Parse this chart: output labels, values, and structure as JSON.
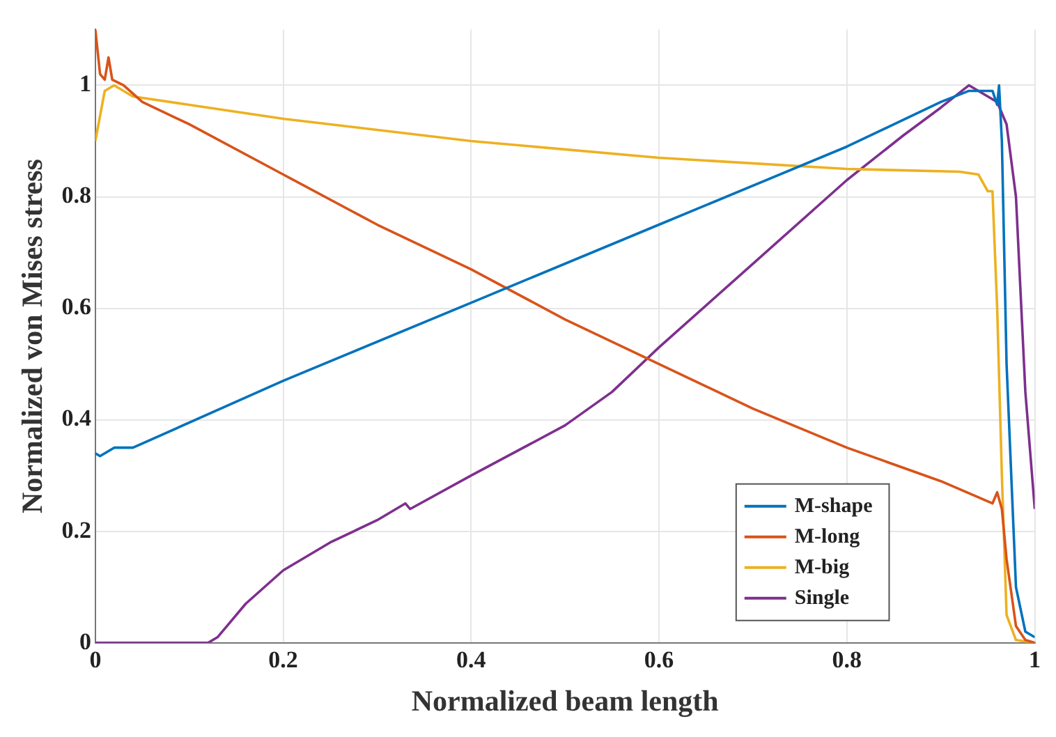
{
  "chart_data": {
    "type": "line",
    "xlabel": "Normalized beam length",
    "ylabel": "Normalized von Mises stress",
    "xlim": [
      0,
      1
    ],
    "ylim": [
      0,
      1.1
    ],
    "xticks": [
      0,
      0.2,
      0.4,
      0.6,
      0.8,
      1
    ],
    "yticks": [
      0,
      0.2,
      0.4,
      0.6,
      0.8,
      1
    ],
    "grid": true,
    "legend": "bottom right",
    "marker": "none",
    "line_style": "solid",
    "series": [
      {
        "name": "M-shape",
        "color": "#0072bd",
        "x": [
          0,
          0.005,
          0.02,
          0.04,
          0.2,
          0.4,
          0.6,
          0.8,
          0.9,
          0.93,
          0.955,
          0.96,
          0.962,
          0.965,
          0.97,
          0.98,
          0.99,
          1
        ],
        "values": [
          0.34,
          0.335,
          0.35,
          0.35,
          0.47,
          0.61,
          0.75,
          0.89,
          0.97,
          0.99,
          0.99,
          0.965,
          1.0,
          0.9,
          0.5,
          0.1,
          0.02,
          0.01
        ]
      },
      {
        "name": "M-long",
        "color": "#d95319",
        "x": [
          0,
          0.005,
          0.01,
          0.014,
          0.018,
          0.03,
          0.05,
          0.1,
          0.2,
          0.3,
          0.4,
          0.5,
          0.6,
          0.7,
          0.8,
          0.9,
          0.955,
          0.96,
          0.965,
          0.97,
          0.98,
          0.99,
          1
        ],
        "values": [
          1.1,
          1.02,
          1.01,
          1.05,
          1.01,
          1.0,
          0.97,
          0.93,
          0.84,
          0.75,
          0.67,
          0.58,
          0.5,
          0.42,
          0.35,
          0.29,
          0.25,
          0.27,
          0.24,
          0.15,
          0.03,
          0.005,
          0
        ]
      },
      {
        "name": "M-big",
        "color": "#edb120",
        "x": [
          0,
          0.01,
          0.02,
          0.04,
          0.1,
          0.2,
          0.4,
          0.6,
          0.8,
          0.92,
          0.94,
          0.95,
          0.955,
          0.96,
          0.965,
          0.97,
          0.98,
          1
        ],
        "values": [
          0.9,
          0.99,
          1.0,
          0.98,
          0.965,
          0.94,
          0.9,
          0.87,
          0.85,
          0.845,
          0.84,
          0.81,
          0.81,
          0.6,
          0.3,
          0.05,
          0.005,
          0
        ]
      },
      {
        "name": "Single",
        "color": "#7e2f8e",
        "x": [
          0,
          0.12,
          0.13,
          0.14,
          0.16,
          0.2,
          0.25,
          0.3,
          0.33,
          0.335,
          0.4,
          0.5,
          0.55,
          0.6,
          0.7,
          0.8,
          0.86,
          0.9,
          0.93,
          0.95,
          0.96,
          0.97,
          0.98,
          0.99,
          1
        ],
        "values": [
          0,
          0,
          0.01,
          0.03,
          0.07,
          0.13,
          0.18,
          0.22,
          0.25,
          0.24,
          0.3,
          0.39,
          0.45,
          0.53,
          0.68,
          0.83,
          0.91,
          0.96,
          1.0,
          0.98,
          0.97,
          0.93,
          0.8,
          0.45,
          0.24
        ]
      }
    ]
  }
}
